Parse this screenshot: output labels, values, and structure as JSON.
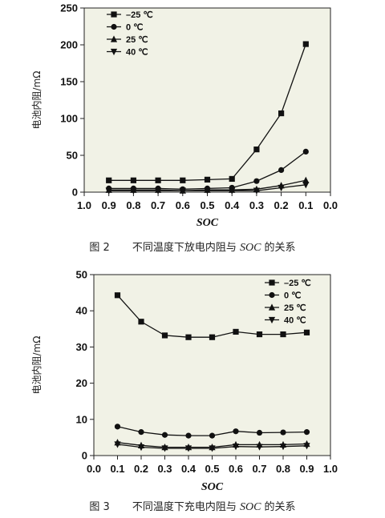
{
  "chart_data": [
    {
      "type": "line",
      "title": "",
      "caption": {
        "number": "图 2",
        "before": "不同温度下放电内阻与 ",
        "italic": "SOC",
        "after": " 的关系"
      },
      "xlabel": "SOC",
      "ylabel": "电池内阻/mΩ",
      "xlim": [
        1.0,
        0.0
      ],
      "ylim": [
        0,
        250
      ],
      "x_ticks": [
        "1.0",
        "0.9",
        "0.8",
        "0.7",
        "0.6",
        "0.5",
        "0.4",
        "0.3",
        "0.2",
        "0.1",
        "0.0"
      ],
      "y_ticks": [
        "0",
        "50",
        "100",
        "150",
        "200",
        "250"
      ],
      "legend_position": "top-left",
      "plot_background": "#f1f2e6",
      "x": [
        0.9,
        0.8,
        0.7,
        0.6,
        0.5,
        0.4,
        0.3,
        0.2,
        0.1
      ],
      "series": [
        {
          "name": "–25 ℃",
          "marker": "square",
          "values": [
            16,
            16,
            16,
            16,
            17,
            18,
            58,
            107,
            201
          ]
        },
        {
          "name": "0 ℃",
          "marker": "circle",
          "values": [
            5,
            5,
            5,
            4,
            5,
            6,
            15,
            30,
            55
          ]
        },
        {
          "name": "25 ℃",
          "marker": "triangle-up",
          "values": [
            3,
            3,
            3,
            2,
            3,
            3,
            4,
            9,
            16
          ]
        },
        {
          "name": "40 ℃",
          "marker": "triangle-down",
          "values": [
            2,
            2,
            2,
            2,
            2,
            2,
            2,
            6,
            10
          ]
        }
      ]
    },
    {
      "type": "line",
      "title": "",
      "caption": {
        "number": "图 3",
        "before": "不同温度下充电内阻与 ",
        "italic": "SOC",
        "after": " 的关系"
      },
      "xlabel": "SOC",
      "ylabel": "电池内阻/mΩ",
      "xlim": [
        0.0,
        1.0
      ],
      "ylim": [
        0,
        50
      ],
      "x_ticks": [
        "0.0",
        "0.1",
        "0.2",
        "0.3",
        "0.4",
        "0.5",
        "0.6",
        "0.7",
        "0.8",
        "0.9",
        "1.0"
      ],
      "y_ticks": [
        "0",
        "10",
        "20",
        "30",
        "40",
        "50"
      ],
      "legend_position": "top-right",
      "plot_background": "#f1f2e6",
      "x": [
        0.1,
        0.2,
        0.3,
        0.4,
        0.5,
        0.6,
        0.7,
        0.8,
        0.9
      ],
      "series": [
        {
          "name": "–25 ℃",
          "marker": "square",
          "values": [
            44.3,
            37.0,
            33.2,
            32.7,
            32.7,
            34.2,
            33.5,
            33.5,
            34.0
          ]
        },
        {
          "name": "0 ℃",
          "marker": "circle",
          "values": [
            8.0,
            6.5,
            5.7,
            5.5,
            5.5,
            6.7,
            6.3,
            6.4,
            6.5
          ]
        },
        {
          "name": "25 ℃",
          "marker": "triangle-up",
          "values": [
            3.6,
            2.8,
            2.3,
            2.3,
            2.3,
            3.0,
            3.0,
            3.0,
            3.2
          ]
        },
        {
          "name": "40 ℃",
          "marker": "triangle-down",
          "values": [
            3.1,
            2.3,
            2.0,
            2.0,
            2.0,
            2.5,
            2.4,
            2.5,
            2.7
          ]
        }
      ]
    }
  ]
}
